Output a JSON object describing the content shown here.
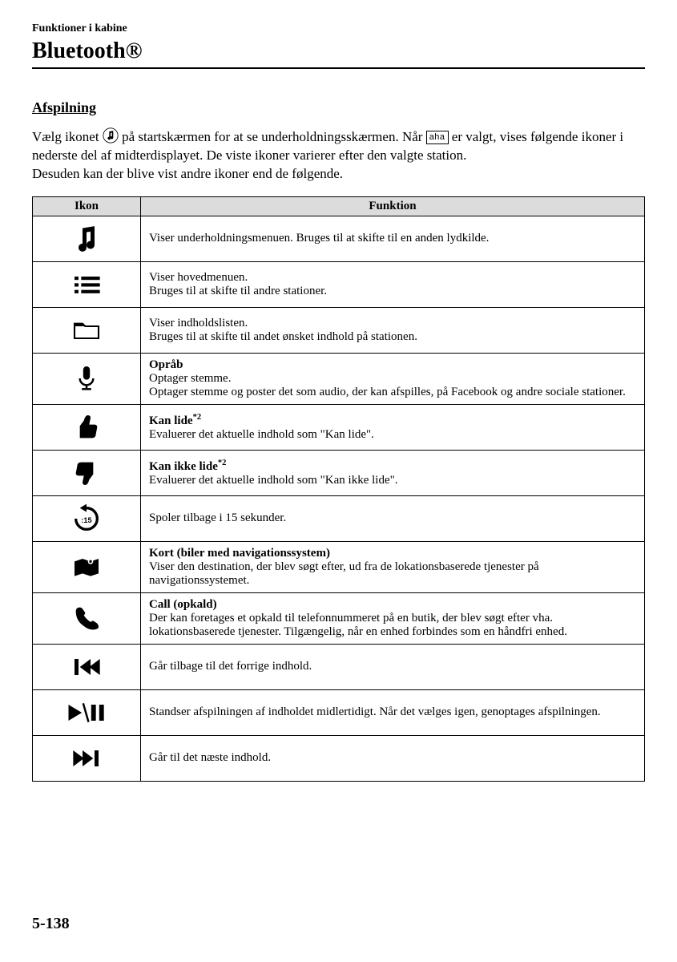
{
  "chapter": "Funktioner i kabine",
  "title": "Bluetooth®",
  "section": "Afspilning",
  "intro": {
    "part1": "Vælg ikonet ",
    "part2": " på startskærmen for at se underholdningsskærmen. Når ",
    "badge": "aha",
    "part3": " er valgt, vises følgende ikoner i nederste del af midterdisplayet. De viste ikoner varierer efter den valgte station.",
    "part4": "Desuden kan der blive vist andre ikoner end de følgende."
  },
  "table": {
    "headers": {
      "icon": "Ikon",
      "func": "Funktion"
    },
    "rows": [
      {
        "icon": "music-note",
        "title": "",
        "desc": "Viser underholdningsmenuen. Bruges til at skifte til en anden lydkilde."
      },
      {
        "icon": "menu-list",
        "title": "",
        "desc": "Viser hovedmenuen.\nBruges til at skifte til andre stationer."
      },
      {
        "icon": "folder",
        "title": "",
        "desc": "Viser indholdslisten.\nBruges til at skifte til andet ønsket indhold på stationen."
      },
      {
        "icon": "microphone",
        "title": "Opråb",
        "desc": "Optager stemme.\nOptager stemme og poster det som audio, der kan afspilles, på Facebook og andre sociale stationer."
      },
      {
        "icon": "thumb-up",
        "title": "Kan lide",
        "title_sup": "*2",
        "desc": "Evaluerer det aktuelle indhold som \"Kan lide\"."
      },
      {
        "icon": "thumb-down",
        "title": "Kan ikke lide",
        "title_sup": "*2",
        "desc": "Evaluerer det aktuelle indhold som \"Kan ikke lide\"."
      },
      {
        "icon": "rewind-15",
        "title": "",
        "desc": "Spoler tilbage i 15 sekunder."
      },
      {
        "icon": "map",
        "title": "Kort (biler med navigationssystem)",
        "desc": "Viser den destination, der blev søgt efter, ud fra de lokationsbaserede tjenester på navigationssystemet."
      },
      {
        "icon": "phone",
        "title": "Call (opkald)",
        "desc": "Der kan foretages et opkald til telefonnummeret på en butik, der blev søgt efter vha. lokationsbaserede tjenester. Tilgængelig, når en enhed forbindes som en håndfri enhed."
      },
      {
        "icon": "prev-track",
        "title": "",
        "desc": "Går tilbage til det forrige indhold."
      },
      {
        "icon": "play-pause",
        "title": "",
        "desc": "Standser afspilningen af indholdet midlertidigt. Når det vælges igen, genoptages afspilningen."
      },
      {
        "icon": "next-track",
        "title": "",
        "desc": "Går til det næste indhold."
      }
    ]
  },
  "page_number": "5-138"
}
